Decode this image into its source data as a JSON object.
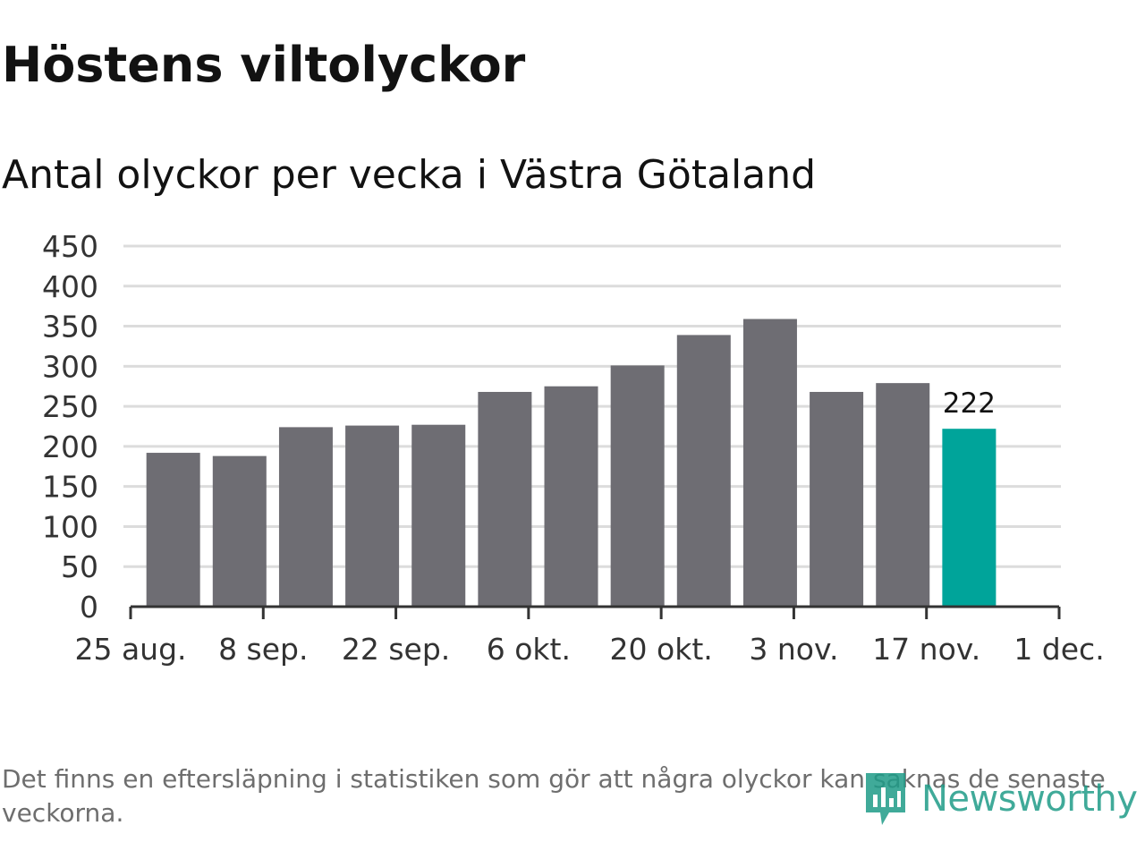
{
  "header": {
    "title": "Höstens viltolyckor",
    "subtitle": "Antal olyckor per vecka i Västra Götaland"
  },
  "footer": {
    "note": "Det finns en eftersläpning i statistiken som gör att några olyckor kan saknas de senaste veckorna.",
    "logo_text": "Newsworthy"
  },
  "colors": {
    "bar": "#6e6d73",
    "highlight": "#00a49a",
    "grid": "#dcdcdc",
    "axis": "#333333",
    "logo": "#1f9c88"
  },
  "chart_data": {
    "type": "bar",
    "title": "Höstens viltolyckor",
    "subtitle": "Antal olyckor per vecka i Västra Götaland",
    "x": [
      "2019-08-26",
      "2019-09-02",
      "2019-09-09",
      "2019-09-16",
      "2019-09-23",
      "2019-09-30",
      "2019-10-07",
      "2019-10-14",
      "2019-10-21",
      "2019-10-28",
      "2019-11-04",
      "2019-11-11",
      "2019-11-18"
    ],
    "values": [
      192,
      188,
      224,
      226,
      227,
      268,
      275,
      301,
      339,
      359,
      268,
      279,
      222
    ],
    "highlight_index": 12,
    "highlight_label": "222",
    "x_ticks": [
      {
        "date": "2019-08-25",
        "label": "25 aug."
      },
      {
        "date": "2019-09-08",
        "label": "8 sep."
      },
      {
        "date": "2019-09-22",
        "label": "22 sep."
      },
      {
        "date": "2019-10-06",
        "label": "6 okt."
      },
      {
        "date": "2019-10-20",
        "label": "20 okt."
      },
      {
        "date": "2019-11-03",
        "label": "3 nov."
      },
      {
        "date": "2019-11-17",
        "label": "17 nov."
      },
      {
        "date": "2019-12-01",
        "label": "1 dec."
      }
    ],
    "xlim": [
      "2019-08-25",
      "2019-12-01"
    ],
    "ylim": [
      0,
      450
    ],
    "y_ticks": [
      0,
      50,
      100,
      150,
      200,
      250,
      300,
      350,
      400,
      450
    ],
    "xlabel": "",
    "ylabel": "",
    "grid": true,
    "legend": "none"
  }
}
